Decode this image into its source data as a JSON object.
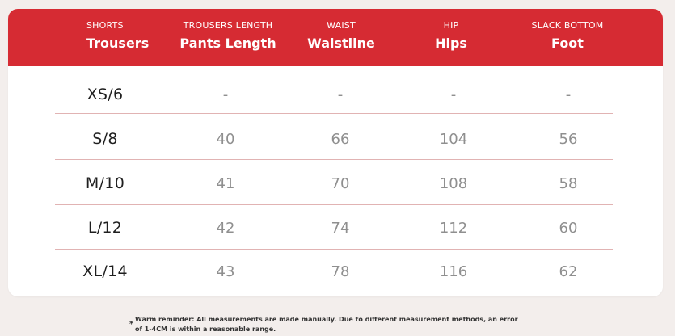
{
  "header": {
    "columns": [
      {
        "sub": "SHORTS",
        "main": "Trousers"
      },
      {
        "sub": "TROUSERS LENGTH",
        "main": "Pants Length"
      },
      {
        "sub": "WAIST",
        "main": "Waistline"
      },
      {
        "sub": "HIP",
        "main": "Hips"
      },
      {
        "sub": "SLACK BOTTOM",
        "main": "Foot"
      }
    ]
  },
  "rows": [
    {
      "size": "XS/6",
      "values": [
        "-",
        "-",
        "-",
        "-"
      ]
    },
    {
      "size": "S/8",
      "values": [
        "40",
        "66",
        "104",
        "56"
      ]
    },
    {
      "size": "M/10",
      "values": [
        "41",
        "70",
        "108",
        "58"
      ]
    },
    {
      "size": "L/12",
      "values": [
        "42",
        "74",
        "112",
        "60"
      ]
    },
    {
      "size": "XL/14",
      "values": [
        "43",
        "78",
        "116",
        "62"
      ]
    }
  ],
  "note": {
    "star": "*",
    "line1": "Warm reminder: All measurements are made manually. Due to different measurement methods, an error",
    "line2": "of 1-4CM is within a reasonable range."
  },
  "colors": {
    "header_bg": "#d62b33",
    "divider": "#e1b3b3"
  }
}
